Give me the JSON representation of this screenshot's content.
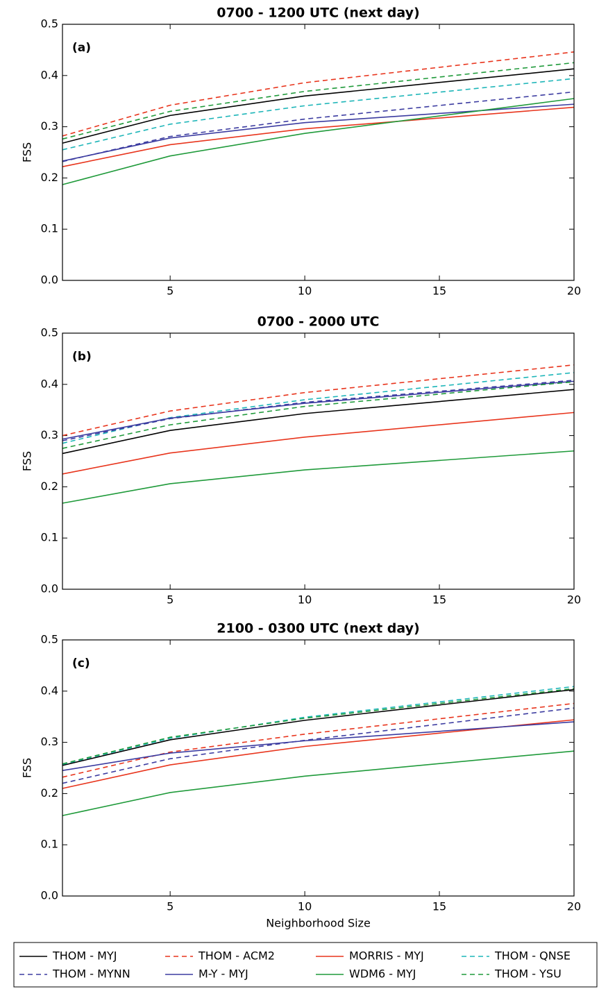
{
  "chart_data": [
    {
      "type": "line",
      "title": "0700 - 1200 UTC (next day)",
      "panel_label": "(a)",
      "y_label": "FSS",
      "x": [
        1,
        5,
        10,
        20
      ],
      "xlim": [
        1,
        20
      ],
      "xticks": [
        5,
        10,
        15,
        20
      ],
      "ylim": [
        0,
        0.5
      ],
      "yticks": [
        {
          "value": 0,
          "label": "0.0"
        },
        0.1,
        0.2,
        0.3,
        0.4,
        0.5
      ],
      "series": [
        {
          "name": "THOM - MYJ",
          "color": "#000000",
          "dashed": false,
          "values": [
            0.268,
            0.322,
            0.36,
            0.413
          ]
        },
        {
          "name": "THOM - ACM2",
          "color": "#e8341c",
          "dashed": true,
          "values": [
            0.282,
            0.342,
            0.386,
            0.446
          ]
        },
        {
          "name": "MORRIS - MYJ",
          "color": "#e8341c",
          "dashed": false,
          "values": [
            0.222,
            0.265,
            0.296,
            0.338
          ]
        },
        {
          "name": "THOM - QNSE",
          "color": "#1cb5b8",
          "dashed": true,
          "values": [
            0.255,
            0.305,
            0.341,
            0.394
          ]
        },
        {
          "name": "THOM - MYNN",
          "color": "#3b3ba0",
          "dashed": true,
          "values": [
            0.232,
            0.281,
            0.315,
            0.368
          ]
        },
        {
          "name": "M-Y - MYJ",
          "color": "#3b3ba0",
          "dashed": false,
          "values": [
            0.233,
            0.278,
            0.308,
            0.344
          ]
        },
        {
          "name": "WDM6 - MYJ",
          "color": "#1f9a3a",
          "dashed": false,
          "values": [
            0.187,
            0.243,
            0.287,
            0.355
          ]
        },
        {
          "name": "THOM - YSU",
          "color": "#1f9a3a",
          "dashed": true,
          "values": [
            0.276,
            0.33,
            0.369,
            0.425
          ]
        }
      ]
    },
    {
      "type": "line",
      "title": "0700 - 2000 UTC",
      "panel_label": "(b)",
      "y_label": "FSS",
      "x": [
        1,
        5,
        10,
        20
      ],
      "xlim": [
        1,
        20
      ],
      "xticks": [
        5,
        10,
        15,
        20
      ],
      "ylim": [
        0,
        0.5
      ],
      "yticks": [
        {
          "value": 0,
          "label": "0.0"
        },
        0.1,
        0.2,
        0.3,
        0.4,
        0.5
      ],
      "series": [
        {
          "name": "THOM - MYJ",
          "color": "#000000",
          "dashed": false,
          "values": [
            0.265,
            0.31,
            0.343,
            0.39
          ]
        },
        {
          "name": "THOM - ACM2",
          "color": "#e8341c",
          "dashed": true,
          "values": [
            0.3,
            0.348,
            0.384,
            0.438
          ]
        },
        {
          "name": "MORRIS - MYJ",
          "color": "#e8341c",
          "dashed": false,
          "values": [
            0.225,
            0.266,
            0.297,
            0.345
          ]
        },
        {
          "name": "THOM - QNSE",
          "color": "#1cb5b8",
          "dashed": true,
          "values": [
            0.285,
            0.335,
            0.37,
            0.423
          ]
        },
        {
          "name": "THOM - MYNN",
          "color": "#3b3ba0",
          "dashed": true,
          "values": [
            0.29,
            0.333,
            0.365,
            0.408
          ]
        },
        {
          "name": "M-Y - MYJ",
          "color": "#3b3ba0",
          "dashed": false,
          "values": [
            0.293,
            0.334,
            0.363,
            0.406
          ]
        },
        {
          "name": "WDM6 - MYJ",
          "color": "#1f9a3a",
          "dashed": false,
          "values": [
            0.168,
            0.206,
            0.233,
            0.27
          ]
        },
        {
          "name": "THOM - YSU",
          "color": "#1f9a3a",
          "dashed": true,
          "values": [
            0.275,
            0.321,
            0.357,
            0.405
          ]
        }
      ]
    },
    {
      "type": "line",
      "title": "2100 - 0300 UTC (next day)",
      "panel_label": "(c)",
      "y_label": "FSS",
      "x_label": "Neighborhood Size",
      "x": [
        1,
        5,
        10,
        20
      ],
      "xlim": [
        1,
        20
      ],
      "xticks": [
        5,
        10,
        15,
        20
      ],
      "ylim": [
        0,
        0.5
      ],
      "yticks": [
        {
          "value": 0,
          "label": "0.0"
        },
        0.1,
        0.2,
        0.3,
        0.4,
        0.5
      ],
      "series": [
        {
          "name": "THOM - MYJ",
          "color": "#000000",
          "dashed": false,
          "values": [
            0.255,
            0.305,
            0.343,
            0.403
          ]
        },
        {
          "name": "THOM - ACM2",
          "color": "#e8341c",
          "dashed": true,
          "values": [
            0.232,
            0.281,
            0.316,
            0.376
          ]
        },
        {
          "name": "MORRIS - MYJ",
          "color": "#e8341c",
          "dashed": false,
          "values": [
            0.21,
            0.256,
            0.292,
            0.344
          ]
        },
        {
          "name": "THOM - QNSE",
          "color": "#1cb5b8",
          "dashed": true,
          "values": [
            0.257,
            0.308,
            0.349,
            0.409
          ]
        },
        {
          "name": "THOM - MYNN",
          "color": "#3b3ba0",
          "dashed": true,
          "values": [
            0.22,
            0.268,
            0.304,
            0.367
          ]
        },
        {
          "name": "M-Y - MYJ",
          "color": "#3b3ba0",
          "dashed": false,
          "values": [
            0.245,
            0.279,
            0.303,
            0.34
          ]
        },
        {
          "name": "WDM6 - MYJ",
          "color": "#1f9a3a",
          "dashed": false,
          "values": [
            0.157,
            0.202,
            0.234,
            0.283
          ]
        },
        {
          "name": "THOM - YSU",
          "color": "#1f9a3a",
          "dashed": true,
          "values": [
            0.258,
            0.31,
            0.347,
            0.405
          ]
        }
      ]
    }
  ]
}
